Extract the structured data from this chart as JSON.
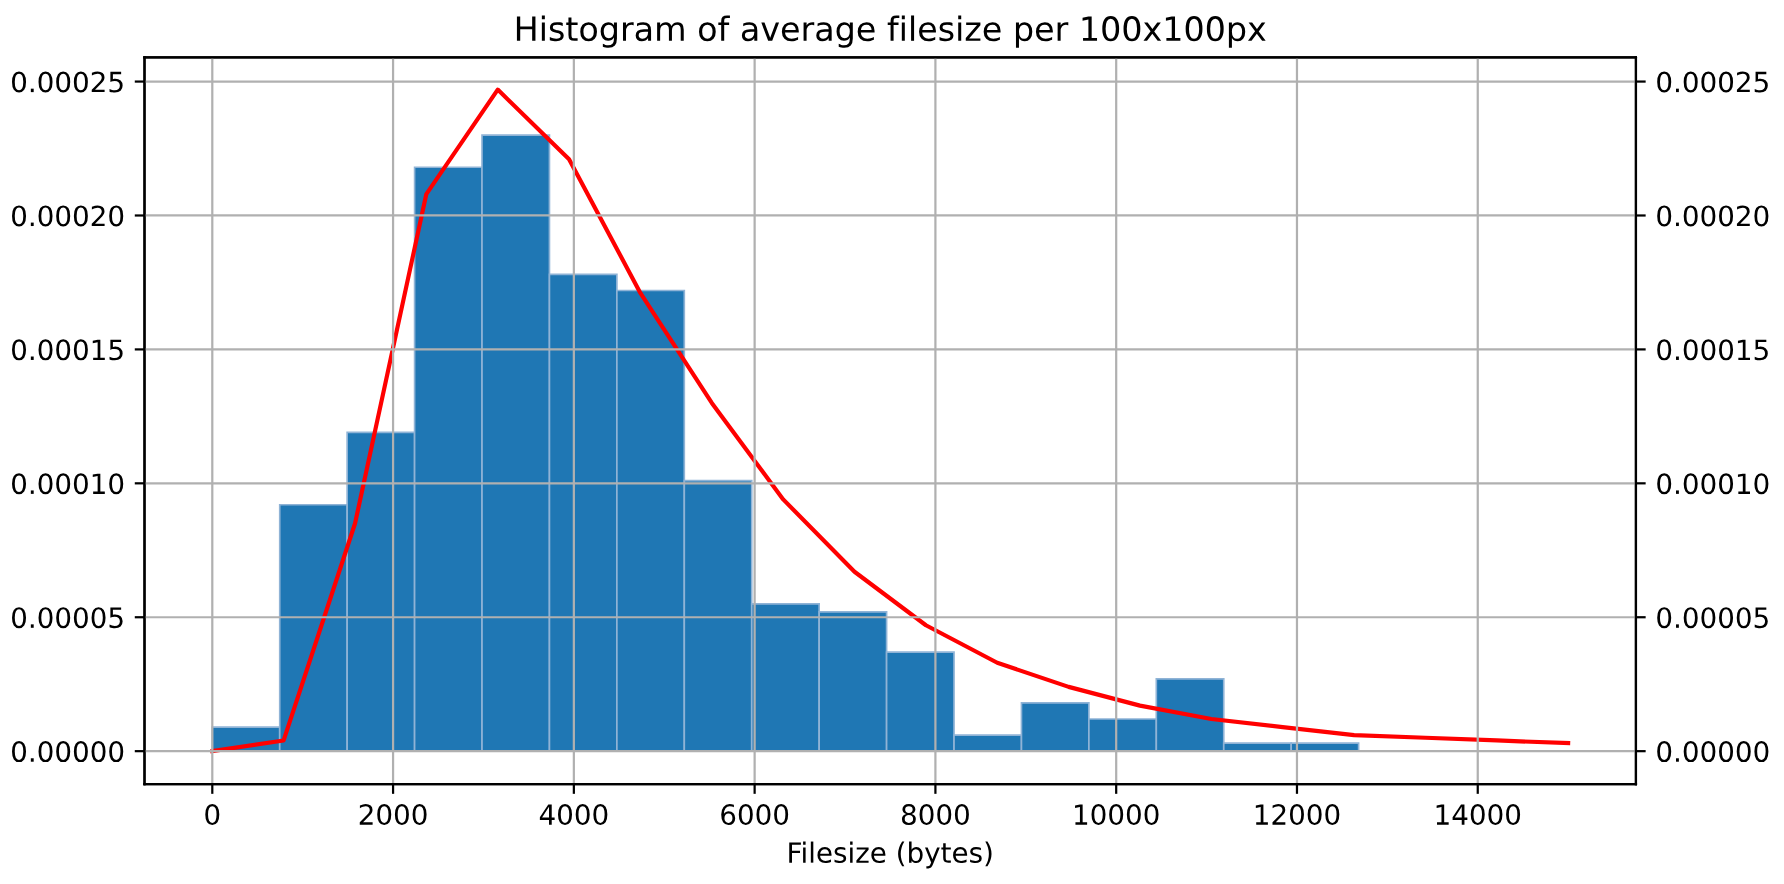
{
  "chart_data": {
    "type": "histogram",
    "title": "Histogram of average filesize per 100x100px",
    "xlabel": "Filesize (bytes)",
    "series": [
      {
        "color": "#1f77b4",
        "bins": [
          0,
          746,
          1492,
          2238,
          2984,
          3730,
          4476,
          5222,
          5968,
          6714,
          7460,
          8206,
          8952,
          9698,
          10444,
          11190,
          11936,
          12682
        ],
        "values": [
          9e-06,
          9.2e-05,
          0.000119,
          0.000218,
          0.00023,
          0.000178,
          0.000172,
          0.000101,
          5.5e-05,
          5.2e-05,
          3.7e-05,
          6e-06,
          1.8e-05,
          1.2e-05,
          2.7e-05,
          3e-06,
          3e-06
        ]
      },
      {
        "type": "line",
        "color": "#ff0000",
        "x": [
          0,
          789,
          1579,
          2368,
          3158,
          3947,
          4737,
          5526,
          6316,
          7105,
          7895,
          8684,
          9474,
          10263,
          11053,
          11842,
          12632,
          13421,
          14211,
          15000
        ],
        "values": [
          0,
          4e-06,
          8.5e-05,
          0.000208,
          0.000247,
          0.000221,
          0.000171,
          0.00013,
          9.4e-05,
          6.7e-05,
          4.7e-05,
          3.3e-05,
          2.4e-05,
          1.7e-05,
          1.2e-05,
          9e-06,
          6e-06,
          5e-06,
          4e-06,
          3e-06
        ]
      }
    ],
    "xlim": [
      -750,
      15750
    ],
    "xticks": [
      0,
      2000,
      4000,
      6000,
      8000,
      10000,
      12000,
      14000
    ],
    "ylim": [
      -1.23e-05,
      0.000259
    ],
    "yticks": [
      {
        "value": 0,
        "label": "0.00000"
      },
      {
        "value": 5e-05,
        "label": "0.00005"
      },
      {
        "value": 0.0001,
        "label": "0.00010"
      },
      {
        "value": 0.00015,
        "label": "0.00015"
      },
      {
        "value": 0.0002,
        "label": "0.00020"
      },
      {
        "value": 0.00025,
        "label": "0.00025"
      }
    ],
    "y2lim": [
      -1.23e-05,
      0.000259
    ],
    "y2ticks": [
      {
        "value": 0,
        "label": "0.00000"
      },
      {
        "value": 5e-05,
        "label": "0.00005"
      },
      {
        "value": 0.0001,
        "label": "0.00010"
      },
      {
        "value": 0.00015,
        "label": "0.00015"
      },
      {
        "value": 0.0002,
        "label": "0.00020"
      },
      {
        "value": 0.00025,
        "label": "0.00025"
      }
    ],
    "grid": true
  }
}
